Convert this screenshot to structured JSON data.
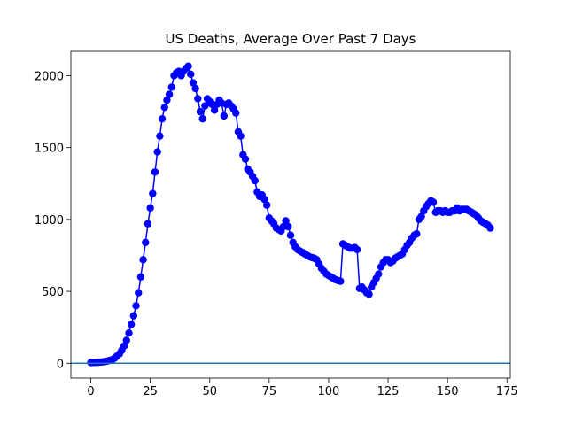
{
  "chart_data": {
    "type": "line",
    "title": "US Deaths, Average Over Past 7 Days",
    "x": [
      0,
      1,
      2,
      3,
      4,
      5,
      6,
      7,
      8,
      9,
      10,
      11,
      12,
      13,
      14,
      15,
      16,
      17,
      18,
      19,
      20,
      21,
      22,
      23,
      24,
      25,
      26,
      27,
      28,
      29,
      30,
      31,
      32,
      33,
      34,
      35,
      36,
      37,
      38,
      39,
      40,
      41,
      42,
      43,
      44,
      45,
      46,
      47,
      48,
      49,
      50,
      51,
      52,
      53,
      54,
      55,
      56,
      57,
      58,
      59,
      60,
      61,
      62,
      63,
      64,
      65,
      66,
      67,
      68,
      69,
      70,
      71,
      72,
      73,
      74,
      75,
      76,
      77,
      78,
      79,
      80,
      81,
      82,
      83,
      84,
      85,
      86,
      87,
      88,
      89,
      90,
      91,
      92,
      93,
      94,
      95,
      96,
      97,
      98,
      99,
      100,
      101,
      102,
      103,
      104,
      105,
      106,
      107,
      108,
      109,
      110,
      111,
      112,
      113,
      114,
      115,
      116,
      117,
      118,
      119,
      120,
      121,
      122,
      123,
      124,
      125,
      126,
      127,
      128,
      129,
      130,
      131,
      132,
      133,
      134,
      135,
      136,
      137,
      138,
      139,
      140,
      141,
      142,
      143,
      144,
      145,
      146,
      147,
      148,
      149,
      150,
      151,
      152,
      153,
      154,
      155,
      156,
      157,
      158,
      159,
      160,
      161,
      162,
      163,
      164,
      165,
      166,
      167,
      168
    ],
    "series": [
      {
        "color": "#0000ff",
        "values": [
          5,
          5,
          6,
          7,
          8,
          10,
          12,
          15,
          20,
          25,
          35,
          50,
          65,
          90,
          120,
          160,
          210,
          270,
          330,
          400,
          490,
          600,
          720,
          840,
          970,
          1080,
          1180,
          1330,
          1470,
          1580,
          1700,
          1780,
          1830,
          1870,
          1920,
          2000,
          2020,
          2030,
          2000,
          2030,
          2050,
          2066,
          2010,
          1950,
          1910,
          1840,
          1750,
          1700,
          1790,
          1840,
          1820,
          1800,
          1760,
          1800,
          1830,
          1810,
          1720,
          1800,
          1810,
          1790,
          1770,
          1740,
          1610,
          1580,
          1450,
          1420,
          1350,
          1330,
          1300,
          1270,
          1190,
          1160,
          1170,
          1140,
          1100,
          1010,
          990,
          970,
          940,
          930,
          920,
          950,
          990,
          950,
          890,
          840,
          810,
          790,
          780,
          770,
          760,
          750,
          740,
          735,
          730,
          720,
          690,
          660,
          640,
          620,
          610,
          600,
          590,
          580,
          575,
          570,
          830,
          820,
          810,
          800,
          800,
          805,
          790,
          520,
          530,
          510,
          490,
          480,
          530,
          560,
          590,
          620,
          670,
          700,
          720,
          720,
          700,
          710,
          730,
          740,
          750,
          760,
          790,
          820,
          840,
          870,
          890,
          900,
          1000,
          1020,
          1060,
          1090,
          1110,
          1130,
          1120,
          1050,
          1060,
          1060,
          1050,
          1060,
          1050,
          1050,
          1060,
          1060,
          1080,
          1060,
          1070,
          1070,
          1070,
          1060,
          1050,
          1040,
          1030,
          1010,
          990,
          980,
          970,
          960,
          940
        ]
      }
    ],
    "reference_line": {
      "value": 0,
      "color": "#1f77b4"
    },
    "xlim": [
      -8.4,
      176.4
    ],
    "ylim": [
      -103,
      2169
    ],
    "xticks": [
      0,
      25,
      50,
      75,
      100,
      125,
      150,
      175
    ],
    "yticks": [
      0,
      500,
      1000,
      1500,
      2000
    ]
  }
}
